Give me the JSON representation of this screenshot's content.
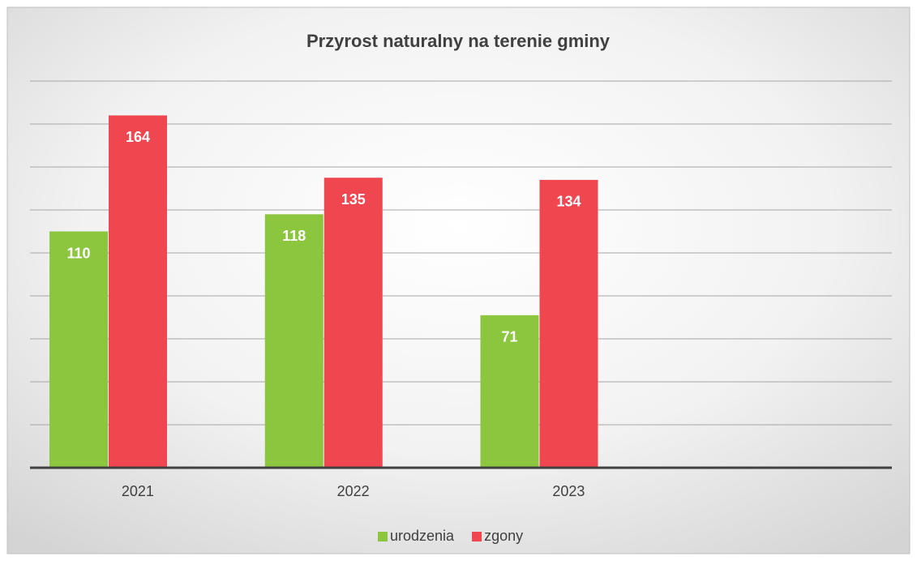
{
  "chart_data": {
    "type": "bar",
    "title": "Przyrost naturalny na terenie gminy",
    "categories": [
      "2021",
      "2022",
      "2023",
      null
    ],
    "series": [
      {
        "name": "urodzenia",
        "color": "#8cc63f",
        "values": [
          110,
          118,
          71,
          null
        ]
      },
      {
        "name": "zgony",
        "color": "#ef4650",
        "values": [
          164,
          135,
          134,
          null
        ]
      }
    ],
    "ylim": [
      0,
      180
    ],
    "yticks": [
      0,
      20,
      40,
      60,
      80,
      100,
      120,
      140,
      160,
      180
    ],
    "grid": true,
    "legend": "bottom"
  }
}
